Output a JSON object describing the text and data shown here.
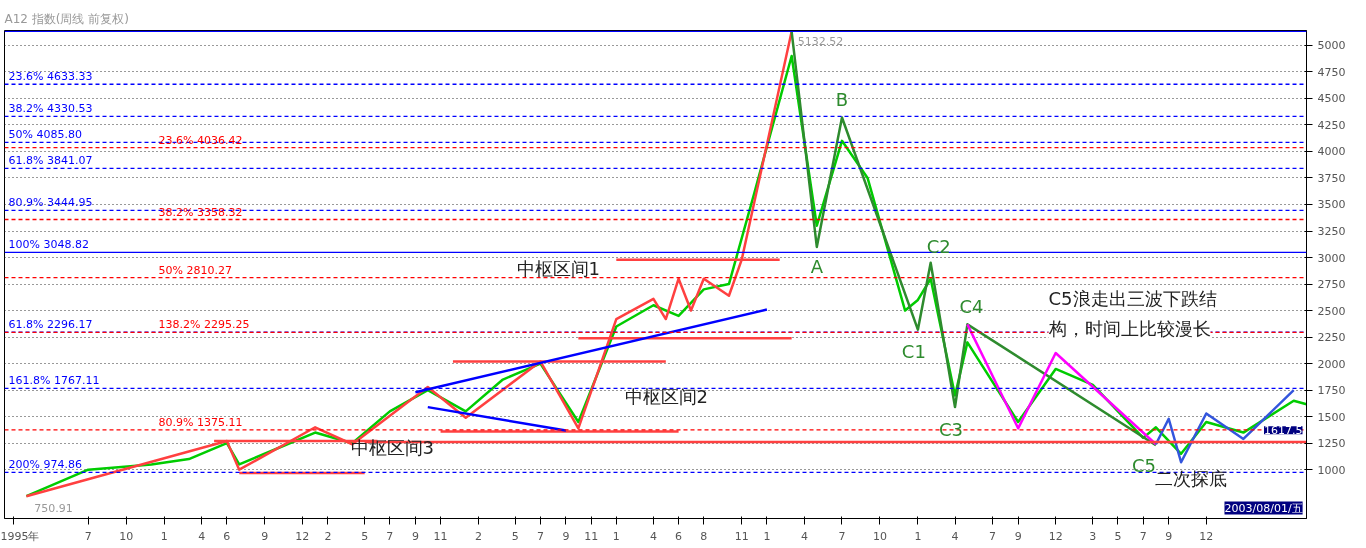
{
  "chart_data": {
    "type": "line",
    "title": "A12 指数(周线 前复权)",
    "xlim": [
      "1994-12-10",
      "2003-08-01"
    ],
    "ylim": [
      540,
      5140
    ],
    "xticks": [
      {
        "value": "1995-01-01",
        "label": "1995年"
      },
      {
        "value": "1995-07",
        "label": "7"
      },
      {
        "value": "1995-10",
        "label": "10"
      },
      {
        "value": "1996-01",
        "label": "1"
      },
      {
        "value": "1996-04",
        "label": "4"
      },
      {
        "value": "1996-06",
        "label": "6"
      },
      {
        "value": "1996-09",
        "label": "9"
      },
      {
        "value": "1996-12",
        "label": "12"
      },
      {
        "value": "1997-02",
        "label": "2"
      },
      {
        "value": "1997-05",
        "label": "5"
      },
      {
        "value": "1997-07",
        "label": "7"
      },
      {
        "value": "1997-09",
        "label": "9"
      },
      {
        "value": "1997-11",
        "label": "11"
      },
      {
        "value": "1998-02",
        "label": "2"
      },
      {
        "value": "1998-05",
        "label": "5"
      },
      {
        "value": "1998-07",
        "label": "7"
      },
      {
        "value": "1998-09",
        "label": "9"
      },
      {
        "value": "1998-11",
        "label": "11"
      },
      {
        "value": "1999-01",
        "label": "1"
      },
      {
        "value": "1999-04",
        "label": "4"
      },
      {
        "value": "1999-06",
        "label": "6"
      },
      {
        "value": "1999-08",
        "label": "8"
      },
      {
        "value": "1999-11",
        "label": "11"
      },
      {
        "value": "2000-01",
        "label": "1"
      },
      {
        "value": "2000-04",
        "label": "4"
      },
      {
        "value": "2000-07",
        "label": "7"
      },
      {
        "value": "2000-10",
        "label": "10"
      },
      {
        "value": "2001-01",
        "label": "1"
      },
      {
        "value": "2001-04",
        "label": "4"
      },
      {
        "value": "2001-07",
        "label": "7"
      },
      {
        "value": "2001-09",
        "label": "9"
      },
      {
        "value": "2001-12",
        "label": "12"
      },
      {
        "value": "2002-03",
        "label": "3"
      },
      {
        "value": "2002-05",
        "label": "5"
      },
      {
        "value": "2002-07",
        "label": "7"
      },
      {
        "value": "2002-09",
        "label": "9"
      },
      {
        "value": "2002-12",
        "label": "12"
      }
    ],
    "yticks": [
      1000,
      1250,
      1500,
      1750,
      2000,
      2250,
      2500,
      2750,
      3000,
      3250,
      3500,
      3750,
      4000,
      4250,
      4500,
      4750,
      5000
    ],
    "grid": "y",
    "series": [
      {
        "color": "#00cc00",
        "x": [
          "1995-02",
          "1995-07",
          "1995-12",
          "1996-03",
          "1996-06",
          "1996-07",
          "1996-10",
          "1997-01",
          "1997-04",
          "1997-07",
          "1997-10",
          "1998-01",
          "1998-04",
          "1998-07",
          "1998-10",
          "1999-01",
          "1999-04",
          "1999-06",
          "1999-08",
          "1999-10",
          "1999-12",
          "2000-03",
          "2000-05",
          "2000-07",
          "2000-09",
          "2000-12",
          "2001-01",
          "2001-02",
          "2001-04",
          "2001-05",
          "2001-09",
          "2001-12",
          "2002-03",
          "2002-07",
          "2002-08",
          "2002-10",
          "2002-12",
          "2003-03",
          "2003-07",
          "2003-08-01"
        ],
        "values": [
          750,
          1000,
          1050,
          1100,
          1250,
          1050,
          1200,
          1350,
          1250,
          1550,
          1750,
          1550,
          1850,
          2000,
          1450,
          2350,
          2550,
          2450,
          2700,
          2750,
          3600,
          4900,
          3300,
          4100,
          3750,
          2500,
          2600,
          2800,
          1700,
          2200,
          1450,
          1950,
          1800,
          1300,
          1400,
          1150,
          1450,
          1350,
          1650,
          1617.5
        ]
      },
      {
        "color": "#ff4040",
        "x": [
          "1995-02",
          "1996-06",
          "1996-07",
          "1997-01",
          "1997-04",
          "1997-10",
          "1998-01",
          "1998-07",
          "1998-10",
          "1999-01",
          "1999-04",
          "1999-05",
          "1999-06",
          "1999-07",
          "1999-08",
          "1999-10",
          "1999-11",
          "2000-03"
        ],
        "values": [
          750,
          1270,
          1000,
          1400,
          1240,
          1780,
          1490,
          2020,
          1390,
          2420,
          2610,
          2420,
          2800,
          2500,
          2800,
          2640,
          2980,
          5130
        ]
      },
      {
        "color": "#2e8b2e",
        "x": [
          "2000-03",
          "2000-05",
          "2000-07",
          "2001-01",
          "2001-02",
          "2001-04",
          "2001-05",
          "2002-08"
        ],
        "values": [
          5130,
          3100,
          4320,
          2320,
          2950,
          1590,
          2370,
          1230
        ]
      },
      {
        "color": "#ff00ff",
        "x": [
          "2001-05",
          "2001-09",
          "2001-12",
          "2002-08"
        ],
        "values": [
          2370,
          1390,
          2100,
          1240
        ]
      },
      {
        "color": "#3355dd",
        "x": [
          "2002-08",
          "2002-09",
          "2002-10",
          "2002-12",
          "2003-03",
          "2003-07"
        ],
        "values": [
          1240,
          1480,
          1070,
          1530,
          1290,
          1750
        ]
      },
      {
        "color": "#ff4040",
        "x": [
          "1996-05",
          "1997-06"
        ],
        "values": [
          1270,
          1270
        ]
      },
      {
        "color": "#ff4040",
        "x": [
          "1996-07",
          "1997-05"
        ],
        "values": [
          970,
          970
        ]
      },
      {
        "color": "#ff4040",
        "x": [
          "1997-12",
          "1999-05"
        ],
        "values": [
          2020,
          2020
        ]
      },
      {
        "color": "#ff4040",
        "x": [
          "1997-11",
          "1999-06"
        ],
        "values": [
          1360,
          1360
        ]
      },
      {
        "color": "#ff4040",
        "x": [
          "1999-01",
          "2000-02"
        ],
        "values": [
          2980,
          2980
        ]
      },
      {
        "color": "#ff4040",
        "x": [
          "1998-10",
          "2000-03"
        ],
        "values": [
          2240,
          2240
        ]
      },
      {
        "color": "#ff4040",
        "x": [
          "1997-05",
          "2003-08-01"
        ],
        "values": [
          1260,
          1260
        ]
      },
      {
        "color": "#0000ff",
        "x": [
          "1997-09",
          "2000-01"
        ],
        "values": [
          1730,
          2510
        ]
      },
      {
        "color": "#0000ff",
        "x": [
          "1997-10",
          "1998-09"
        ],
        "values": [
          1590,
          1370
        ]
      }
    ],
    "ref_lines": [
      {
        "axis": "y",
        "value": 5132.52,
        "label": null,
        "color": "#0000ff",
        "line_style": "solid"
      },
      {
        "axis": "y",
        "value": 4633.33,
        "label": "23.6% 4633.33",
        "color": "#0000ff",
        "line_style": "dashed"
      },
      {
        "axis": "y",
        "value": 4330.53,
        "label": "38.2% 4330.53",
        "color": "#0000ff",
        "line_style": "dashed"
      },
      {
        "axis": "y",
        "value": 4085.8,
        "label": "50% 4085.80",
        "color": "#0000ff",
        "line_style": "dashed"
      },
      {
        "axis": "y",
        "value": 4036.42,
        "label": "23.6% 4036.42",
        "color": "#ff0000",
        "line_style": "dashed"
      },
      {
        "axis": "y",
        "value": 3841.07,
        "label": "61.8% 3841.07",
        "color": "#0000ff",
        "line_style": "dashed"
      },
      {
        "axis": "y",
        "value": 3444.95,
        "label": "80.9% 3444.95",
        "color": "#0000ff",
        "line_style": "dashed"
      },
      {
        "axis": "y",
        "value": 3358.32,
        "label": "38.2% 3358.32",
        "color": "#ff0000",
        "line_style": "dashed"
      },
      {
        "axis": "y",
        "value": 3048.82,
        "label": "100% 3048.82",
        "color": "#0000ff",
        "line_style": "solid"
      },
      {
        "axis": "y",
        "value": 2810.27,
        "label": "50% 2810.27",
        "color": "#ff0000",
        "line_style": "dashed"
      },
      {
        "axis": "y",
        "value": 2296.17,
        "label": "61.8% 2296.17",
        "color": "#0000ff",
        "line_style": "dashed"
      },
      {
        "axis": "y",
        "value": 2295.25,
        "label": "138.2% 2295.25",
        "color": "#ff0000",
        "line_style": "dashed"
      },
      {
        "axis": "y",
        "value": 1767.11,
        "label": "161.8% 1767.11",
        "color": "#0000ff",
        "line_style": "dashed"
      },
      {
        "axis": "y",
        "value": 1375.11,
        "label": "80.9% 1375.11",
        "color": "#ff0000",
        "line_style": "dashed"
      },
      {
        "axis": "y",
        "value": 974.86,
        "label": "200% 974.86",
        "color": "#0000ff",
        "line_style": "dashed"
      }
    ],
    "annotations": [
      "中枢区间1",
      "中枢区间2",
      "中枢区间3",
      {
        "text": "A",
        "x": "2000-05",
        "y": 3100
      },
      {
        "text": "B",
        "x": "2000-07",
        "y": 4320
      },
      {
        "text": "C1",
        "x": "2001-01",
        "y": 2320
      },
      {
        "text": "C2",
        "x": "2001-02",
        "y": 2950
      },
      {
        "text": "C3",
        "x": "2001-04",
        "y": 1590
      },
      {
        "text": "C4",
        "x": "2001-05",
        "y": 2370
      },
      {
        "text": "C5",
        "x": "2002-08",
        "y": 1230
      },
      "C5浪走出三波下跌结构，时间上比较漫长",
      "二次探底",
      {
        "text": "5132.52",
        "x": "2000-03",
        "y": 5132.52
      },
      {
        "text": "750.91",
        "x": "1995-02",
        "y": 750.91
      },
      {
        "text": "1617.5",
        "x": "2003-08-01",
        "y": 1617.5
      },
      "2003/08/01/五"
    ]
  }
}
